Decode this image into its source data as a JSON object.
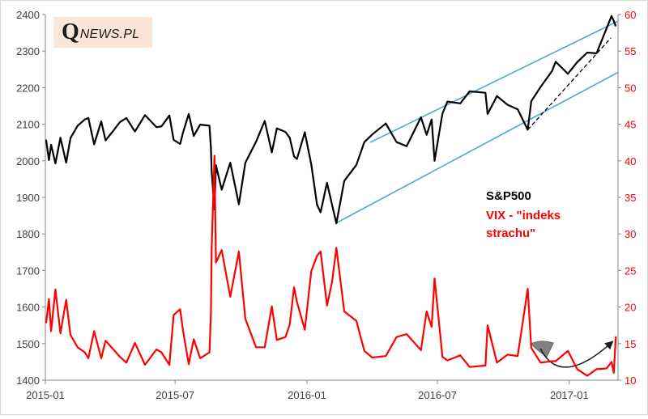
{
  "brand": {
    "logo_initial": "Q",
    "logo_rest": "NEWS.PL"
  },
  "legend": {
    "sp500": "S&P500",
    "vix_line1": "VIX - \"indeks",
    "vix_line2": "strachu\""
  },
  "colors": {
    "sp500": "#000000",
    "vix": "#ff0000",
    "trend": "#4bacc6",
    "arrow": "#808080"
  },
  "chart_data": {
    "type": "line",
    "title": "",
    "xlabel": "",
    "ylabel_left": "",
    "ylabel_right": "",
    "x_tick_labels": [
      "2015-01",
      "2015-07",
      "2016-01",
      "2016-07",
      "2017-01"
    ],
    "xlim": [
      "2015-01-01",
      "2017-03-10"
    ],
    "left_axis": {
      "min": 1400,
      "max": 2400,
      "ticks": [
        1400,
        1500,
        1600,
        1700,
        1800,
        1900,
        2000,
        2100,
        2200,
        2300,
        2400
      ]
    },
    "right_axis": {
      "min": 10,
      "max": 60,
      "ticks": [
        10,
        15,
        20,
        25,
        30,
        35,
        40,
        45,
        50,
        55,
        60
      ]
    },
    "grid": false,
    "series": [
      {
        "name": "S&P500",
        "axis": "left",
        "color": "#000000",
        "points": [
          [
            "2015-01-02",
            2058
          ],
          [
            "2015-01-06",
            2002
          ],
          [
            "2015-01-09",
            2044
          ],
          [
            "2015-01-15",
            1993
          ],
          [
            "2015-01-22",
            2063
          ],
          [
            "2015-01-30",
            1995
          ],
          [
            "2015-02-05",
            2062
          ],
          [
            "2015-02-15",
            2096
          ],
          [
            "2015-02-25",
            2113
          ],
          [
            "2015-03-02",
            2117
          ],
          [
            "2015-03-10",
            2045
          ],
          [
            "2015-03-20",
            2108
          ],
          [
            "2015-03-26",
            2056
          ],
          [
            "2015-04-05",
            2080
          ],
          [
            "2015-04-15",
            2106
          ],
          [
            "2015-04-24",
            2117
          ],
          [
            "2015-05-06",
            2080
          ],
          [
            "2015-05-20",
            2125
          ],
          [
            "2015-06-05",
            2092
          ],
          [
            "2015-06-12",
            2094
          ],
          [
            "2015-06-23",
            2124
          ],
          [
            "2015-06-29",
            2057
          ],
          [
            "2015-07-08",
            2046
          ],
          [
            "2015-07-12",
            2077
          ],
          [
            "2015-07-20",
            2128
          ],
          [
            "2015-07-27",
            2068
          ],
          [
            "2015-08-05",
            2099
          ],
          [
            "2015-08-18",
            2096
          ],
          [
            "2015-08-20",
            2035
          ],
          [
            "2015-08-21",
            1971
          ],
          [
            "2015-08-25",
            1867
          ],
          [
            "2015-08-27",
            1988
          ],
          [
            "2015-09-04",
            1921
          ],
          [
            "2015-09-16",
            1995
          ],
          [
            "2015-09-28",
            1881
          ],
          [
            "2015-10-07",
            1995
          ],
          [
            "2015-10-22",
            2052
          ],
          [
            "2015-11-03",
            2109
          ],
          [
            "2015-11-13",
            2023
          ],
          [
            "2015-11-20",
            2089
          ],
          [
            "2015-12-02",
            2079
          ],
          [
            "2015-12-08",
            2063
          ],
          [
            "2015-12-14",
            2012
          ],
          [
            "2015-12-18",
            2005
          ],
          [
            "2015-12-29",
            2078
          ],
          [
            "2016-01-07",
            1990
          ],
          [
            "2016-01-15",
            1880
          ],
          [
            "2016-01-20",
            1859
          ],
          [
            "2016-01-29",
            1940
          ],
          [
            "2016-02-05",
            1880
          ],
          [
            "2016-02-11",
            1829
          ],
          [
            "2016-02-22",
            1945
          ],
          [
            "2016-03-10",
            1989
          ],
          [
            "2016-03-21",
            2051
          ],
          [
            "2016-04-01",
            2072
          ],
          [
            "2016-04-20",
            2102
          ],
          [
            "2016-05-05",
            2051
          ],
          [
            "2016-05-19",
            2040
          ],
          [
            "2016-06-08",
            2119
          ],
          [
            "2016-06-16",
            2071
          ],
          [
            "2016-06-23",
            2113
          ],
          [
            "2016-06-27",
            2000
          ],
          [
            "2016-07-08",
            2129
          ],
          [
            "2016-07-15",
            2162
          ],
          [
            "2016-08-02",
            2157
          ],
          [
            "2016-08-15",
            2190
          ],
          [
            "2016-09-06",
            2186
          ],
          [
            "2016-09-09",
            2128
          ],
          [
            "2016-09-22",
            2177
          ],
          [
            "2016-10-07",
            2153
          ],
          [
            "2016-10-21",
            2141
          ],
          [
            "2016-11-04",
            2085
          ],
          [
            "2016-11-09",
            2163
          ],
          [
            "2016-11-22",
            2202
          ],
          [
            "2016-12-08",
            2246
          ],
          [
            "2016-12-13",
            2271
          ],
          [
            "2016-12-30",
            2238
          ],
          [
            "2017-01-12",
            2270
          ],
          [
            "2017-01-26",
            2296
          ],
          [
            "2017-02-08",
            2294
          ],
          [
            "2017-02-22",
            2362
          ],
          [
            "2017-03-01",
            2396
          ],
          [
            "2017-03-04",
            2383
          ],
          [
            "2017-03-07",
            2368
          ]
        ]
      },
      {
        "name": "VIX - \"indeks strachu\"",
        "axis": "right",
        "color": "#ff0000",
        "points": [
          [
            "2015-01-02",
            17.8
          ],
          [
            "2015-01-06",
            21.1
          ],
          [
            "2015-01-09",
            16.7
          ],
          [
            "2015-01-15",
            22.4
          ],
          [
            "2015-01-22",
            16.4
          ],
          [
            "2015-01-30",
            21.0
          ],
          [
            "2015-02-05",
            16.2
          ],
          [
            "2015-02-15",
            14.5
          ],
          [
            "2015-02-25",
            13.8
          ],
          [
            "2015-03-02",
            13.0
          ],
          [
            "2015-03-10",
            16.7
          ],
          [
            "2015-03-20",
            13.0
          ],
          [
            "2015-03-26",
            15.4
          ],
          [
            "2015-04-05",
            14.3
          ],
          [
            "2015-04-15",
            13.2
          ],
          [
            "2015-04-24",
            12.4
          ],
          [
            "2015-05-06",
            15.1
          ],
          [
            "2015-05-20",
            12.1
          ],
          [
            "2015-06-05",
            14.2
          ],
          [
            "2015-06-12",
            13.8
          ],
          [
            "2015-06-23",
            12.1
          ],
          [
            "2015-06-29",
            18.9
          ],
          [
            "2015-07-08",
            19.7
          ],
          [
            "2015-07-12",
            16.8
          ],
          [
            "2015-07-20",
            12.2
          ],
          [
            "2015-07-27",
            15.6
          ],
          [
            "2015-08-05",
            13.0
          ],
          [
            "2015-08-18",
            13.8
          ],
          [
            "2015-08-20",
            19.1
          ],
          [
            "2015-08-21",
            28.0
          ],
          [
            "2015-08-25",
            40.7
          ],
          [
            "2015-08-27",
            26.1
          ],
          [
            "2015-09-04",
            27.8
          ],
          [
            "2015-09-16",
            21.4
          ],
          [
            "2015-09-28",
            27.6
          ],
          [
            "2015-10-07",
            18.4
          ],
          [
            "2015-10-22",
            14.5
          ],
          [
            "2015-11-03",
            14.5
          ],
          [
            "2015-11-13",
            20.1
          ],
          [
            "2015-11-20",
            15.5
          ],
          [
            "2015-12-02",
            15.9
          ],
          [
            "2015-12-08",
            17.6
          ],
          [
            "2015-12-14",
            22.7
          ],
          [
            "2015-12-18",
            20.7
          ],
          [
            "2015-12-29",
            16.9
          ],
          [
            "2016-01-07",
            24.9
          ],
          [
            "2016-01-15",
            27.0
          ],
          [
            "2016-01-20",
            27.6
          ],
          [
            "2016-01-29",
            20.2
          ],
          [
            "2016-02-05",
            23.4
          ],
          [
            "2016-02-11",
            28.1
          ],
          [
            "2016-02-22",
            19.4
          ],
          [
            "2016-03-10",
            18.1
          ],
          [
            "2016-03-21",
            14.0
          ],
          [
            "2016-04-01",
            13.1
          ],
          [
            "2016-04-20",
            13.3
          ],
          [
            "2016-05-05",
            15.9
          ],
          [
            "2016-05-19",
            16.3
          ],
          [
            "2016-06-08",
            14.1
          ],
          [
            "2016-06-16",
            19.4
          ],
          [
            "2016-06-23",
            17.3
          ],
          [
            "2016-06-27",
            23.9
          ],
          [
            "2016-07-08",
            13.2
          ],
          [
            "2016-07-15",
            12.7
          ],
          [
            "2016-08-02",
            13.4
          ],
          [
            "2016-08-15",
            11.8
          ],
          [
            "2016-09-06",
            12.0
          ],
          [
            "2016-09-09",
            17.5
          ],
          [
            "2016-09-22",
            12.4
          ],
          [
            "2016-10-07",
            13.5
          ],
          [
            "2016-10-21",
            13.3
          ],
          [
            "2016-11-04",
            22.5
          ],
          [
            "2016-11-09",
            14.4
          ],
          [
            "2016-11-22",
            12.4
          ],
          [
            "2016-12-08",
            12.6
          ],
          [
            "2016-12-13",
            12.6
          ],
          [
            "2016-12-30",
            14.0
          ],
          [
            "2017-01-12",
            11.5
          ],
          [
            "2017-01-26",
            10.6
          ],
          [
            "2017-02-08",
            11.5
          ],
          [
            "2017-02-22",
            11.6
          ],
          [
            "2017-03-01",
            12.5
          ],
          [
            "2017-03-04",
            11.0
          ],
          [
            "2017-03-07",
            16.0
          ]
        ]
      }
    ],
    "annotations": [
      {
        "type": "trendline",
        "name": "upper-channel-line",
        "axis": "left",
        "from": [
          "2016-03-29",
          2050
        ],
        "to": [
          "2017-03-10",
          2382
        ]
      },
      {
        "type": "trendline",
        "name": "lower-channel-line",
        "axis": "left",
        "from": [
          "2016-02-11",
          1830
        ],
        "to": [
          "2017-03-10",
          2242
        ]
      },
      {
        "type": "dashed-trendline",
        "name": "dashed-support-line",
        "axis": "left",
        "from": [
          "2016-11-04",
          2085
        ],
        "to": [
          "2017-02-28",
          2336
        ]
      },
      {
        "type": "curved-arrow",
        "name": "vix-curved-arrow",
        "axis": "right",
        "from": [
          "2016-11-15",
          15.2
        ],
        "to": [
          "2017-03-09",
          15.5
        ]
      }
    ]
  }
}
